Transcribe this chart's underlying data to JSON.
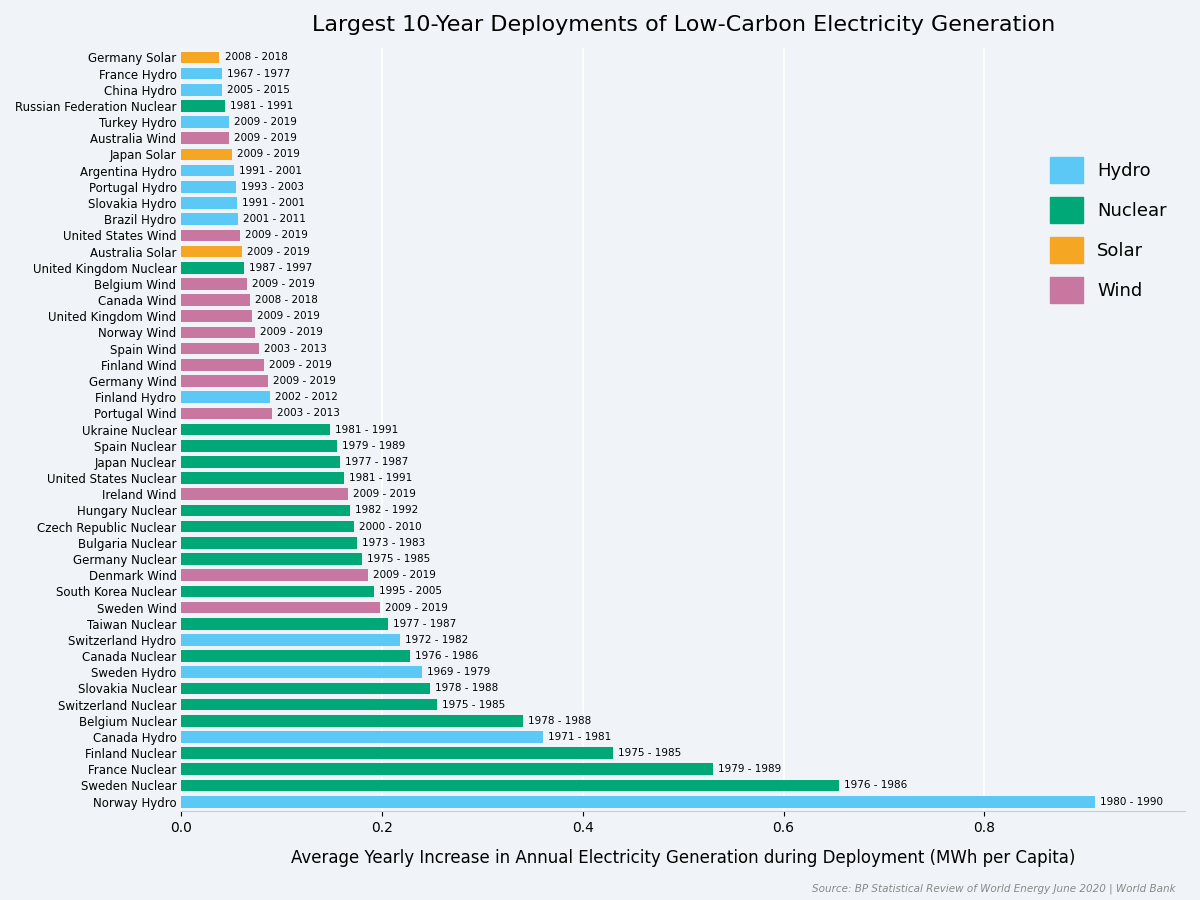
{
  "title": "Largest 10-Year Deployments of Low-Carbon Electricity Generation",
  "xlabel": "Average Yearly Increase in Annual Electricity Generation during Deployment (MWh per Capita)",
  "source": "Source: BP Statistical Review of World Energy June 2020 | World Bank",
  "colors": {
    "Hydro": "#5BC8F5",
    "Nuclear": "#00A878",
    "Solar": "#F5A623",
    "Wind": "#C878A0"
  },
  "bars": [
    {
      "label": "Germany Solar",
      "type": "Solar",
      "value": 0.038,
      "period": "2008 - 2018"
    },
    {
      "label": "France Hydro",
      "type": "Hydro",
      "value": 0.04,
      "period": "1967 - 1977"
    },
    {
      "label": "China Hydro",
      "type": "Hydro",
      "value": 0.04,
      "period": "2005 - 2015"
    },
    {
      "label": "Russian Federation Nuclear",
      "type": "Nuclear",
      "value": 0.043,
      "period": "1981 - 1991"
    },
    {
      "label": "Turkey Hydro",
      "type": "Hydro",
      "value": 0.047,
      "period": "2009 - 2019"
    },
    {
      "label": "Australia Wind",
      "type": "Wind",
      "value": 0.047,
      "period": "2009 - 2019"
    },
    {
      "label": "Japan Solar",
      "type": "Solar",
      "value": 0.05,
      "period": "2009 - 2019"
    },
    {
      "label": "Argentina Hydro",
      "type": "Hydro",
      "value": 0.052,
      "period": "1991 - 2001"
    },
    {
      "label": "Portugal Hydro",
      "type": "Hydro",
      "value": 0.054,
      "period": "1993 - 2003"
    },
    {
      "label": "Slovakia Hydro",
      "type": "Hydro",
      "value": 0.055,
      "period": "1991 - 2001"
    },
    {
      "label": "Brazil Hydro",
      "type": "Hydro",
      "value": 0.056,
      "period": "2001 - 2011"
    },
    {
      "label": "United States Wind",
      "type": "Wind",
      "value": 0.058,
      "period": "2009 - 2019"
    },
    {
      "label": "Australia Solar",
      "type": "Solar",
      "value": 0.06,
      "period": "2009 - 2019"
    },
    {
      "label": "United Kingdom Nuclear",
      "type": "Nuclear",
      "value": 0.062,
      "period": "1987 - 1997"
    },
    {
      "label": "Belgium Wind",
      "type": "Wind",
      "value": 0.065,
      "period": "2009 - 2019"
    },
    {
      "label": "Canada Wind",
      "type": "Wind",
      "value": 0.068,
      "period": "2008 - 2018"
    },
    {
      "label": "United Kingdom Wind",
      "type": "Wind",
      "value": 0.07,
      "period": "2009 - 2019"
    },
    {
      "label": "Norway Wind",
      "type": "Wind",
      "value": 0.073,
      "period": "2009 - 2019"
    },
    {
      "label": "Spain Wind",
      "type": "Wind",
      "value": 0.077,
      "period": "2003 - 2013"
    },
    {
      "label": "Finland Wind",
      "type": "Wind",
      "value": 0.082,
      "period": "2009 - 2019"
    },
    {
      "label": "Germany Wind",
      "type": "Wind",
      "value": 0.086,
      "period": "2009 - 2019"
    },
    {
      "label": "Finland Hydro",
      "type": "Hydro",
      "value": 0.088,
      "period": "2002 - 2012"
    },
    {
      "label": "Portugal Wind",
      "type": "Wind",
      "value": 0.09,
      "period": "2003 - 2013"
    },
    {
      "label": "Ukraine Nuclear",
      "type": "Nuclear",
      "value": 0.148,
      "period": "1981 - 1991"
    },
    {
      "label": "Spain Nuclear",
      "type": "Nuclear",
      "value": 0.155,
      "period": "1979 - 1989"
    },
    {
      "label": "Japan Nuclear",
      "type": "Nuclear",
      "value": 0.158,
      "period": "1977 - 1987"
    },
    {
      "label": "United States Nuclear",
      "type": "Nuclear",
      "value": 0.162,
      "period": "1981 - 1991"
    },
    {
      "label": "Ireland Wind",
      "type": "Wind",
      "value": 0.166,
      "period": "2009 - 2019"
    },
    {
      "label": "Hungary Nuclear",
      "type": "Nuclear",
      "value": 0.168,
      "period": "1982 - 1992"
    },
    {
      "label": "Czech Republic Nuclear",
      "type": "Nuclear",
      "value": 0.172,
      "period": "2000 - 2010"
    },
    {
      "label": "Bulgaria Nuclear",
      "type": "Nuclear",
      "value": 0.175,
      "period": "1973 - 1983"
    },
    {
      "label": "Germany Nuclear",
      "type": "Nuclear",
      "value": 0.18,
      "period": "1975 - 1985"
    },
    {
      "label": "Denmark Wind",
      "type": "Wind",
      "value": 0.186,
      "period": "2009 - 2019"
    },
    {
      "label": "South Korea Nuclear",
      "type": "Nuclear",
      "value": 0.192,
      "period": "1995 - 2005"
    },
    {
      "label": "Sweden Wind",
      "type": "Wind",
      "value": 0.198,
      "period": "2009 - 2019"
    },
    {
      "label": "Taiwan Nuclear",
      "type": "Nuclear",
      "value": 0.206,
      "period": "1977 - 1987"
    },
    {
      "label": "Switzerland Hydro",
      "type": "Hydro",
      "value": 0.218,
      "period": "1972 - 1982"
    },
    {
      "label": "Canada Nuclear",
      "type": "Nuclear",
      "value": 0.228,
      "period": "1976 - 1986"
    },
    {
      "label": "Sweden Hydro",
      "type": "Hydro",
      "value": 0.24,
      "period": "1969 - 1979"
    },
    {
      "label": "Slovakia Nuclear",
      "type": "Nuclear",
      "value": 0.248,
      "period": "1978 - 1988"
    },
    {
      "label": "Switzerland Nuclear",
      "type": "Nuclear",
      "value": 0.255,
      "period": "1975 - 1985"
    },
    {
      "label": "Belgium Nuclear",
      "type": "Nuclear",
      "value": 0.34,
      "period": "1978 - 1988"
    },
    {
      "label": "Canada Hydro",
      "type": "Hydro",
      "value": 0.36,
      "period": "1971 - 1981"
    },
    {
      "label": "Finland Nuclear",
      "type": "Nuclear",
      "value": 0.43,
      "period": "1975 - 1985"
    },
    {
      "label": "France Nuclear",
      "type": "Nuclear",
      "value": 0.53,
      "period": "1979 - 1989"
    },
    {
      "label": "Sweden Nuclear",
      "type": "Nuclear",
      "value": 0.655,
      "period": "1976 - 1986"
    },
    {
      "label": "Norway Hydro",
      "type": "Hydro",
      "value": 0.91,
      "period": "1980 - 1990"
    }
  ],
  "xlim": [
    0,
    1.0
  ],
  "xticks": [
    0.0,
    0.2,
    0.4,
    0.6,
    0.8
  ],
  "background_color": "#F0F4F8",
  "grid_color": "#FFFFFF",
  "bar_height": 0.72,
  "title_fontsize": 16,
  "label_fontsize": 8.5,
  "tick_fontsize": 10,
  "xlabel_fontsize": 12
}
